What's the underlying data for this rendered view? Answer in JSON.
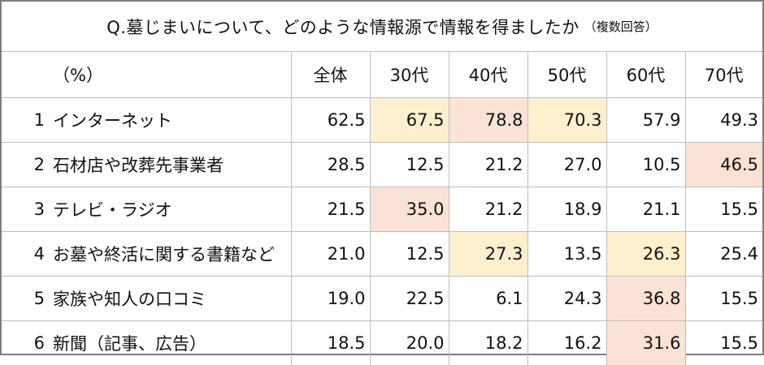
{
  "title": "Q.墓じまいについて、どのような情報源で情報を得ましたか",
  "title_note": "（複数回答）",
  "unit_label": "（%）",
  "headers": [
    "全体",
    "30代",
    "40代",
    "50代",
    "60代",
    "70代"
  ],
  "highlight_colors": {
    "yellow": "#fdf0cf",
    "pink": "#fbe2d6"
  },
  "rows": [
    {
      "num": "1",
      "label": "インターネット",
      "values": [
        "62.5",
        "67.5",
        "78.8",
        "70.3",
        "57.9",
        "49.3"
      ],
      "highlight": [
        "",
        "yellow",
        "pink",
        "yellow",
        "",
        ""
      ]
    },
    {
      "num": "2",
      "label": "石材店や改葬先事業者",
      "values": [
        "28.5",
        "12.5",
        "21.2",
        "27.0",
        "10.5",
        "46.5"
      ],
      "highlight": [
        "",
        "",
        "",
        "",
        "",
        "pink"
      ]
    },
    {
      "num": "3",
      "label": "テレビ・ラジオ",
      "values": [
        "21.5",
        "35.0",
        "21.2",
        "18.9",
        "21.1",
        "15.5"
      ],
      "highlight": [
        "",
        "pink",
        "",
        "",
        "",
        ""
      ]
    },
    {
      "num": "4",
      "label": "お墓や終活に関する書籍など",
      "values": [
        "21.0",
        "12.5",
        "27.3",
        "13.5",
        "26.3",
        "25.4"
      ],
      "highlight": [
        "",
        "",
        "yellow",
        "",
        "yellow",
        ""
      ]
    },
    {
      "num": "5",
      "label": "家族や知人の口コミ",
      "values": [
        "19.0",
        "22.5",
        "6.1",
        "24.3",
        "36.8",
        "15.5"
      ],
      "highlight": [
        "",
        "",
        "",
        "",
        "pink",
        ""
      ]
    },
    {
      "num": "6",
      "label": "新聞（記事、広告）",
      "values": [
        "18.5",
        "20.0",
        "18.2",
        "16.2",
        "31.6",
        "15.5"
      ],
      "highlight": [
        "",
        "",
        "",
        "",
        "pink",
        ""
      ]
    }
  ]
}
